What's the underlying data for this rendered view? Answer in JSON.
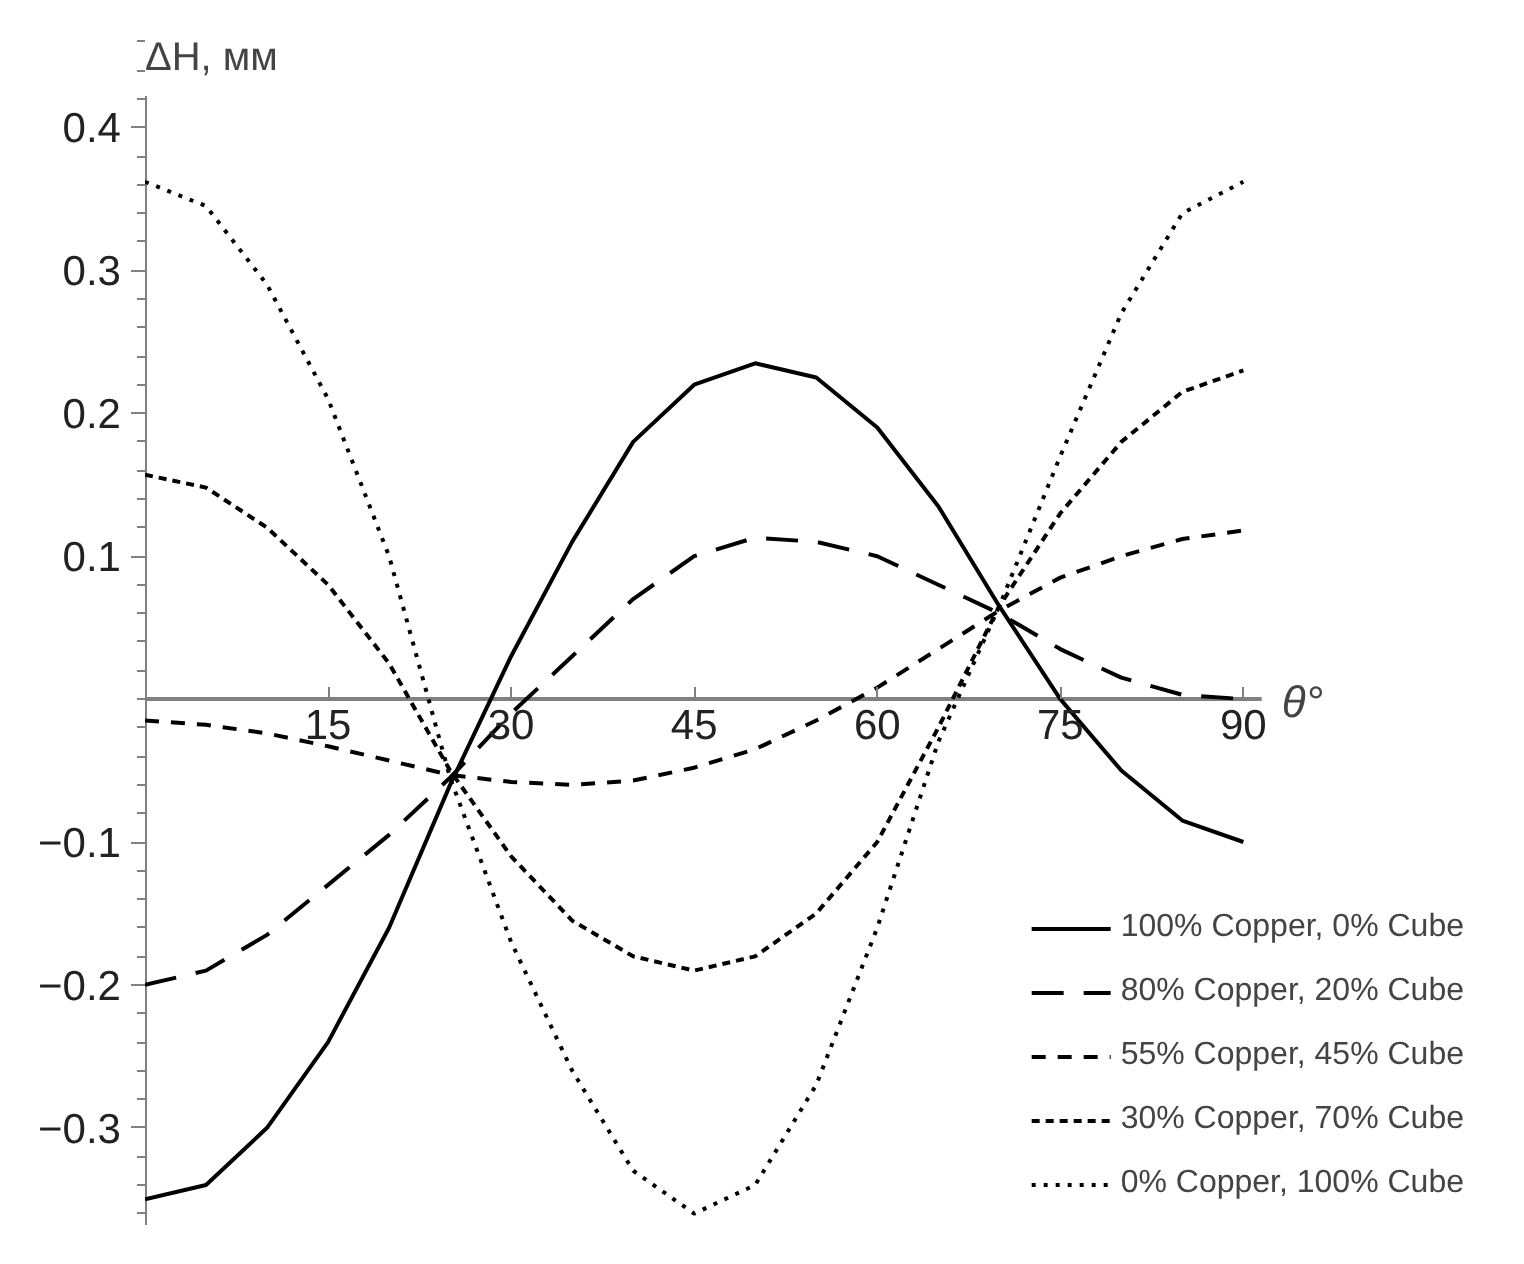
{
  "chart_data": {
    "type": "line",
    "xlabel": "θ°",
    "ylabel": "ΔH, мм",
    "x": [
      0,
      5,
      10,
      15,
      20,
      25,
      30,
      35,
      40,
      45,
      50,
      55,
      60,
      65,
      70,
      75,
      80,
      85,
      90
    ],
    "xlim": [
      0,
      91.5
    ],
    "ylim": [
      -0.368,
      0.422
    ],
    "xticks": [
      15,
      30,
      45,
      60,
      75,
      90
    ],
    "yticks": [
      {
        "value": -0.3,
        "label": "−0.3"
      },
      {
        "value": -0.2,
        "label": "−0.2"
      },
      {
        "value": -0.1,
        "label": "−0.1"
      },
      0.1,
      0.2,
      0.3,
      0.4
    ],
    "grid": false,
    "legend": "bottom right",
    "marker": "none",
    "series": [
      {
        "name": "100% Copper, 0% Cube",
        "color": "#000000",
        "line_style": "solid",
        "values": [
          -0.35,
          -0.34,
          -0.3,
          -0.24,
          -0.16,
          -0.06,
          0.03,
          0.11,
          0.18,
          0.22,
          0.235,
          0.225,
          0.19,
          0.135,
          0.065,
          0.0,
          -0.05,
          -0.085,
          -0.1
        ]
      },
      {
        "name": "80% Copper, 20% Cube",
        "color": "#000000",
        "line_style": "dashed",
        "values": [
          -0.2,
          -0.19,
          -0.165,
          -0.13,
          -0.095,
          -0.055,
          -0.01,
          0.03,
          0.07,
          0.1,
          0.113,
          0.11,
          0.1,
          0.08,
          0.06,
          0.035,
          0.015,
          0.003,
          0.0
        ]
      },
      {
        "name": "55% Copper, 45% Cube",
        "color": "#000000",
        "line_style": "dashed",
        "values": [
          -0.015,
          -0.018,
          -0.024,
          -0.033,
          -0.043,
          -0.053,
          -0.058,
          -0.06,
          -0.057,
          -0.048,
          -0.035,
          -0.015,
          0.008,
          0.035,
          0.062,
          0.085,
          0.1,
          0.112,
          0.118
        ]
      },
      {
        "name": "30% Copper, 70% Cube",
        "color": "#000000",
        "line_style": "dotted",
        "values": [
          0.157,
          0.148,
          0.12,
          0.08,
          0.025,
          -0.05,
          -0.11,
          -0.155,
          -0.18,
          -0.19,
          -0.18,
          -0.15,
          -0.1,
          -0.02,
          0.065,
          0.13,
          0.18,
          0.215,
          0.23
        ]
      },
      {
        "name": "0% Copper, 100% Cube",
        "color": "#000000",
        "line_style": "dotted",
        "values": [
          0.362,
          0.345,
          0.29,
          0.21,
          0.1,
          -0.055,
          -0.17,
          -0.26,
          -0.33,
          -0.36,
          -0.34,
          -0.27,
          -0.16,
          -0.03,
          0.065,
          0.17,
          0.27,
          0.34,
          0.362
        ]
      }
    ]
  }
}
